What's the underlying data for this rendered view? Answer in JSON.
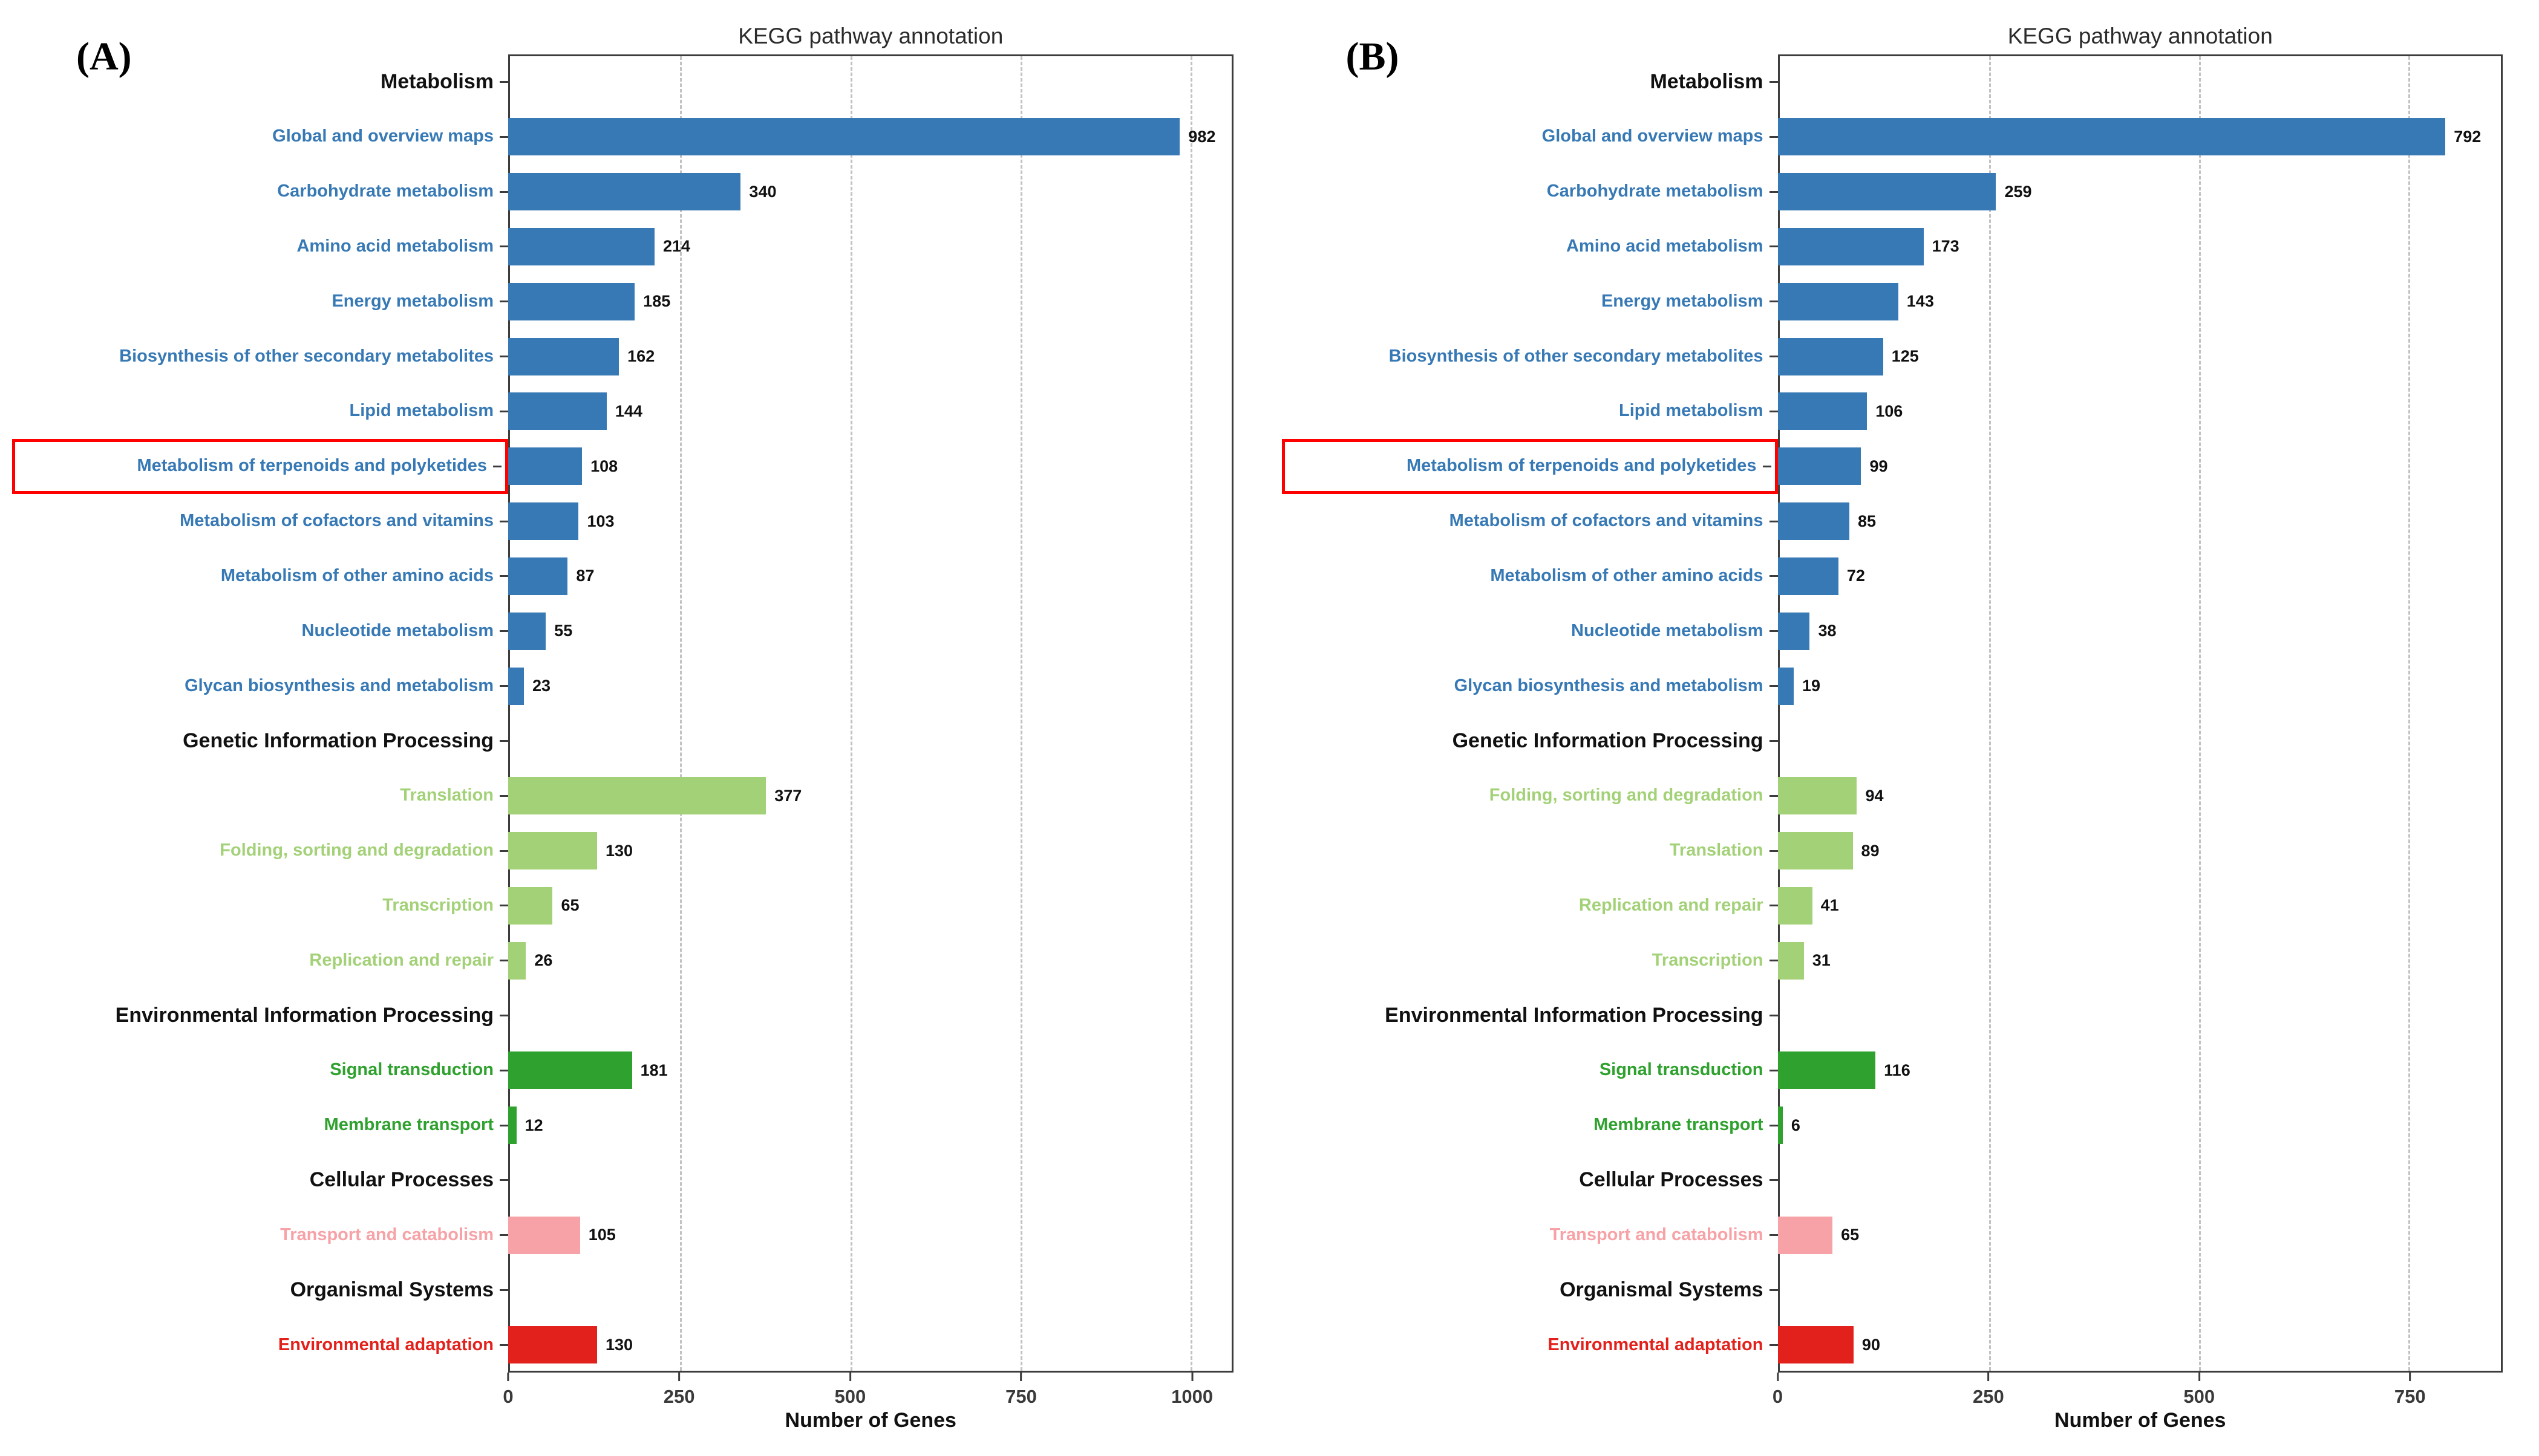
{
  "colors": {
    "metabolism_blue": "#3779b5",
    "genetic_light_green": "#a3d177",
    "environmental_green": "#2fa12e",
    "cellular_pink": "#f7a2a6",
    "organismal_red": "#e3211c",
    "header_black": "#111111",
    "grid_gray": "#c2c2c2",
    "highlight_box_red": "#fe0000"
  },
  "chart_data": [
    {
      "type": "bar",
      "orientation": "horizontal",
      "panel_label": "(A)",
      "title": "KEGG pathway annotation",
      "xlabel": "Number of Genes",
      "x_ticks": [
        0,
        250,
        500,
        750,
        1000
      ],
      "xlim": [
        0,
        1060
      ],
      "grid": "dashed-vertical",
      "highlighted_category": "Metabolism of terpenoids and polyketides",
      "groups": [
        {
          "name": "Metabolism",
          "color_key": "metabolism_blue",
          "categories": [
            "Global and overview maps",
            "Carbohydrate metabolism",
            "Amino acid metabolism",
            "Energy metabolism",
            "Biosynthesis of other secondary metabolites",
            "Lipid metabolism",
            "Metabolism of terpenoids and polyketides",
            "Metabolism of cofactors and vitamins",
            "Metabolism of other amino acids",
            "Nucleotide metabolism",
            "Glycan biosynthesis and metabolism"
          ],
          "values": [
            982,
            340,
            214,
            185,
            162,
            144,
            108,
            103,
            87,
            55,
            23
          ]
        },
        {
          "name": "Genetic Information Processing",
          "color_key": "genetic_light_green",
          "categories": [
            "Translation",
            "Folding, sorting and degradation",
            "Transcription",
            "Replication and repair"
          ],
          "values": [
            377,
            130,
            65,
            26
          ]
        },
        {
          "name": "Environmental Information Processing",
          "color_key": "environmental_green",
          "categories": [
            "Signal transduction",
            "Membrane transport"
          ],
          "values": [
            181,
            12
          ]
        },
        {
          "name": "Cellular Processes",
          "color_key": "cellular_pink",
          "categories": [
            "Transport and catabolism"
          ],
          "values": [
            105
          ]
        },
        {
          "name": "Organismal Systems",
          "color_key": "organismal_red",
          "categories": [
            "Environmental adaptation"
          ],
          "values": [
            130
          ]
        }
      ]
    },
    {
      "type": "bar",
      "orientation": "horizontal",
      "panel_label": "(B)",
      "title": "KEGG pathway annotation",
      "xlabel": "Number of Genes",
      "x_ticks": [
        0,
        250,
        500,
        750
      ],
      "xlim": [
        0,
        860
      ],
      "grid": "dashed-vertical",
      "highlighted_category": "Metabolism of terpenoids and polyketides",
      "groups": [
        {
          "name": "Metabolism",
          "color_key": "metabolism_blue",
          "categories": [
            "Global and overview maps",
            "Carbohydrate metabolism",
            "Amino acid metabolism",
            "Energy metabolism",
            "Biosynthesis of other secondary metabolites",
            "Lipid metabolism",
            "Metabolism of terpenoids and polyketides",
            "Metabolism of cofactors and vitamins",
            "Metabolism of other amino acids",
            "Nucleotide metabolism",
            "Glycan biosynthesis and metabolism"
          ],
          "values": [
            792,
            259,
            173,
            143,
            125,
            106,
            99,
            85,
            72,
            38,
            19
          ]
        },
        {
          "name": "Genetic Information Processing",
          "color_key": "genetic_light_green",
          "categories": [
            "Folding, sorting and degradation",
            "Translation",
            "Replication and repair",
            "Transcription"
          ],
          "values": [
            94,
            89,
            41,
            31
          ]
        },
        {
          "name": "Environmental Information Processing",
          "color_key": "environmental_green",
          "categories": [
            "Signal transduction",
            "Membrane transport"
          ],
          "values": [
            116,
            6
          ]
        },
        {
          "name": "Cellular Processes",
          "color_key": "cellular_pink",
          "categories": [
            "Transport and catabolism"
          ],
          "values": [
            65
          ]
        },
        {
          "name": "Organismal Systems",
          "color_key": "organismal_red",
          "categories": [
            "Environmental adaptation"
          ],
          "values": [
            90
          ]
        }
      ]
    }
  ]
}
